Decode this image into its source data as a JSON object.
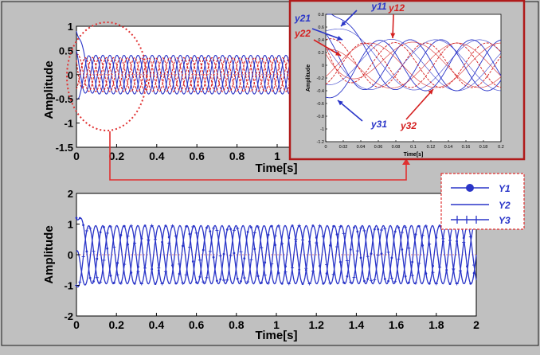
{
  "figure": {
    "background": "#c0c0c0",
    "plot_background": "#ffffff",
    "highlight_color": "#e03030",
    "trace_blue": "#2a35c8",
    "trace_red": "#d42020"
  },
  "chart_data": [
    {
      "id": "top",
      "type": "line",
      "xlabel": "Time[s]",
      "ylabel": "Amplitude",
      "xlim": [
        0,
        2
      ],
      "ylim": [
        -1.5,
        1
      ],
      "x_ticks": [
        "0",
        "0.2",
        "0.4",
        "0.6",
        "0.8",
        "1"
      ],
      "x_tick_values": [
        0,
        0.2,
        0.4,
        0.6,
        0.8,
        1
      ],
      "y_ticks": [
        "1",
        "0.5",
        "0",
        "-0.5",
        "-1",
        "-1.5"
      ],
      "y_tick_values": [
        1,
        0.5,
        0,
        -0.5,
        -1,
        -1.5
      ],
      "series": [
        {
          "name": "y11",
          "color": "blue",
          "amplitude": 0.4,
          "frequency_hz": 9.5,
          "phase_deg": 0,
          "initial": 0.9
        },
        {
          "name": "y12",
          "color": "red",
          "amplitude": 0.35,
          "frequency_hz": 9.5,
          "phase_deg": 60,
          "initial": 0.4
        },
        {
          "name": "y21",
          "color": "blue",
          "amplitude": 0.4,
          "frequency_hz": 9.5,
          "phase_deg": 120,
          "initial": 0.5
        },
        {
          "name": "y22",
          "color": "red",
          "amplitude": 0.35,
          "frequency_hz": 9.5,
          "phase_deg": 180,
          "initial": 0.3
        },
        {
          "name": "y31",
          "color": "blue",
          "amplitude": 0.4,
          "frequency_hz": 9.5,
          "phase_deg": 240,
          "initial": -0.5
        },
        {
          "name": "y32",
          "color": "red",
          "amplitude": 0.35,
          "frequency_hz": 9.5,
          "phase_deg": 300,
          "initial": -0.3
        }
      ]
    },
    {
      "id": "inset",
      "type": "line",
      "xlabel": "Time[s]",
      "ylabel": "Amplitude",
      "xlim": [
        0,
        0.2
      ],
      "ylim": [
        -1.2,
        0.8
      ],
      "x_ticks": [
        "0",
        "0.02",
        "0.04",
        "0.06",
        "0.08",
        "0.1",
        "0.12",
        "0.14",
        "0.16",
        "0.18",
        "0.2"
      ],
      "x_tick_values": [
        0,
        0.02,
        0.04,
        0.06,
        0.08,
        0.1,
        0.12,
        0.14,
        0.16,
        0.18,
        0.2
      ],
      "y_ticks": [
        "0.8",
        "0.6",
        "0.4",
        "0.2",
        "0",
        "-0.2",
        "-0.4",
        "-0.6",
        "-0.8",
        "-1",
        "-1.2"
      ],
      "y_tick_values": [
        0.8,
        0.6,
        0.4,
        0.2,
        0,
        -0.2,
        -0.4,
        -0.6,
        -0.8,
        -1,
        -1.2
      ],
      "annotations": [
        {
          "label": "y11",
          "color": "blue"
        },
        {
          "label": "y12",
          "color": "red"
        },
        {
          "label": "y21",
          "color": "blue"
        },
        {
          "label": "y22",
          "color": "red"
        },
        {
          "label": "y31",
          "color": "blue"
        },
        {
          "label": "y32",
          "color": "red"
        }
      ]
    },
    {
      "id": "bottom",
      "type": "line",
      "xlabel": "Time[s]",
      "ylabel": "Amplitude",
      "xlim": [
        0,
        2
      ],
      "ylim": [
        -2,
        2
      ],
      "x_ticks": [
        "0",
        "0.2",
        "0.4",
        "0.6",
        "0.8",
        "1",
        "1.2",
        "1.4",
        "1.6",
        "1.8",
        "2"
      ],
      "x_tick_values": [
        0,
        0.2,
        0.4,
        0.6,
        0.8,
        1,
        1.2,
        1.4,
        1.6,
        1.8,
        2
      ],
      "y_ticks": [
        "2",
        "1",
        "0",
        "-1",
        "-2"
      ],
      "y_tick_values": [
        2,
        1,
        0,
        -1,
        -2
      ],
      "legend": {
        "placement": "top-right",
        "entries": [
          "Y1",
          "Y2",
          "Y3"
        ]
      },
      "series": [
        {
          "name": "Y1",
          "marker": "dot",
          "amplitude": 0.95,
          "frequency_hz": 9.5,
          "phase_deg": 0,
          "initial": 1.2
        },
        {
          "name": "Y2",
          "marker": "none",
          "amplitude": 0.95,
          "frequency_hz": 9.5,
          "phase_deg": 120,
          "initial": 0.1
        },
        {
          "name": "Y3",
          "marker": "plus",
          "amplitude": 0.95,
          "frequency_hz": 9.5,
          "phase_deg": 240,
          "initial": -1.0
        }
      ]
    }
  ]
}
